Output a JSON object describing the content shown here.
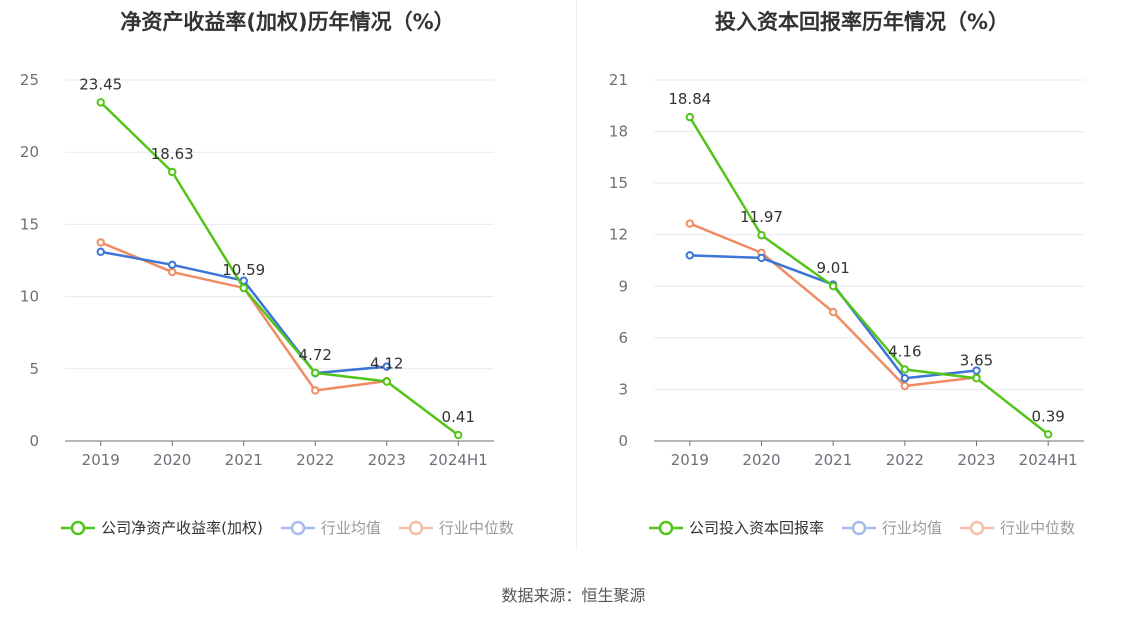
{
  "chart_data": [
    {
      "type": "line",
      "title": "净资产收益率(加权)历年情况（%）",
      "categories": [
        "2019",
        "2020",
        "2021",
        "2022",
        "2023",
        "2024H1"
      ],
      "ylim": [
        0,
        25
      ],
      "yticks": [
        0,
        5,
        10,
        15,
        20,
        25
      ],
      "grid": true,
      "legend_position": "bottom",
      "series": [
        {
          "name": "公司净资产收益率(加权)",
          "color": "#52c41a",
          "values": [
            23.45,
            18.63,
            10.59,
            4.72,
            4.12,
            0.41
          ],
          "labels": [
            "23.45",
            "18.63",
            "10.59",
            "4.72",
            "4.12",
            "0.41"
          ]
        },
        {
          "name": "行业均值",
          "color": "#3d75d6",
          "values": [
            13.1,
            12.2,
            11.1,
            4.7,
            5.15,
            null
          ]
        },
        {
          "name": "行业中位数",
          "color": "#f08c64",
          "values": [
            13.75,
            11.7,
            10.6,
            3.5,
            4.15,
            null
          ]
        }
      ]
    },
    {
      "type": "line",
      "title": "投入资本回报率历年情况（%）",
      "categories": [
        "2019",
        "2020",
        "2021",
        "2022",
        "2023",
        "2024H1"
      ],
      "ylim": [
        0,
        21
      ],
      "yticks": [
        0,
        3,
        6,
        9,
        12,
        15,
        18,
        21
      ],
      "grid": true,
      "legend_position": "bottom",
      "series": [
        {
          "name": "公司投入资本回报率",
          "color": "#52c41a",
          "values": [
            18.84,
            11.97,
            9.01,
            4.16,
            3.65,
            0.39
          ],
          "labels": [
            "18.84",
            "11.97",
            "9.01",
            "4.16",
            "3.65",
            "0.39"
          ]
        },
        {
          "name": "行业均值",
          "color": "#3d75d6",
          "values": [
            10.8,
            10.65,
            9.1,
            3.65,
            4.1,
            null
          ]
        },
        {
          "name": "行业中位数",
          "color": "#f08c64",
          "values": [
            12.65,
            10.95,
            7.5,
            3.2,
            3.7,
            null
          ]
        }
      ]
    }
  ],
  "source": "数据来源：恒生聚源"
}
